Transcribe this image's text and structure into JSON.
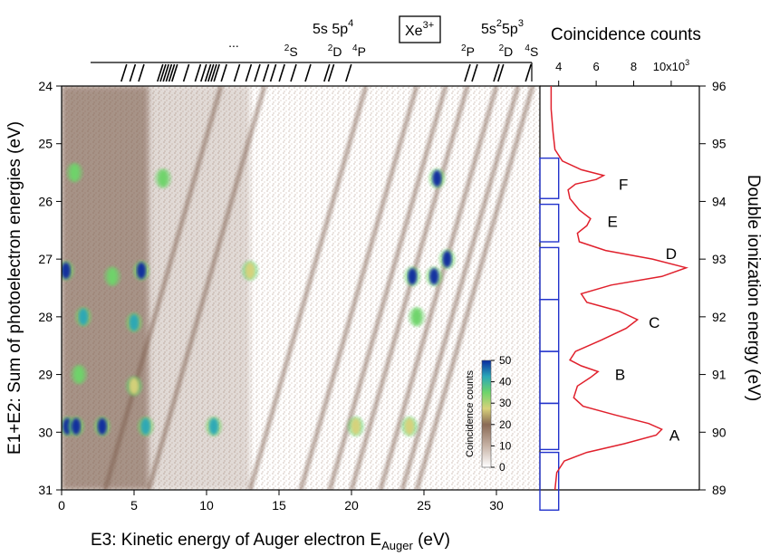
{
  "chart_data": [
    {
      "type": "heatmap",
      "xlabel_main": "E3: Kinetic energy of Auger electron E",
      "xlabel_sub": "Auger",
      "xlabel_unit": " (eV)",
      "ylabel": "E1+E2: Sum of photoelectron energies (eV)",
      "xlim": [
        0,
        33
      ],
      "ylim": [
        24,
        31
      ],
      "xticks": [
        0,
        5,
        10,
        15,
        20,
        25,
        30
      ],
      "yticks": [
        24,
        25,
        26,
        27,
        28,
        29,
        30,
        31
      ],
      "y_reversed": true,
      "colorbar": {
        "label": "Coincidence counts",
        "range": [
          0,
          50
        ],
        "ticks": [
          0,
          10,
          20,
          30,
          40,
          50
        ]
      },
      "hotspots": [
        {
          "x": 0.4,
          "y": 29.9,
          "level": 50
        },
        {
          "x": 1.0,
          "y": 29.9,
          "level": 48
        },
        {
          "x": 2.8,
          "y": 29.9,
          "level": 46
        },
        {
          "x": 5.8,
          "y": 29.9,
          "level": 44
        },
        {
          "x": 10.5,
          "y": 29.9,
          "level": 38
        },
        {
          "x": 0.3,
          "y": 27.2,
          "level": 45
        },
        {
          "x": 5.5,
          "y": 27.2,
          "level": 48
        },
        {
          "x": 3.5,
          "y": 27.3,
          "level": 30
        },
        {
          "x": 13.0,
          "y": 27.2,
          "level": 25
        },
        {
          "x": 24.2,
          "y": 27.3,
          "level": 50
        },
        {
          "x": 25.7,
          "y": 27.3,
          "level": 48
        },
        {
          "x": 26.6,
          "y": 27.0,
          "level": 45
        },
        {
          "x": 1.5,
          "y": 28.0,
          "level": 40
        },
        {
          "x": 5.0,
          "y": 28.1,
          "level": 42
        },
        {
          "x": 24.5,
          "y": 28.0,
          "level": 30
        },
        {
          "x": 25.9,
          "y": 25.6,
          "level": 45
        },
        {
          "x": 7.0,
          "y": 25.6,
          "level": 32
        },
        {
          "x": 0.9,
          "y": 25.5,
          "level": 30
        },
        {
          "x": 1.2,
          "y": 29.0,
          "level": 30
        },
        {
          "x": 5.0,
          "y": 29.2,
          "level": 25
        },
        {
          "x": 20.3,
          "y": 29.9,
          "level": 22
        },
        {
          "x": 24.0,
          "y": 29.9,
          "level": 28
        }
      ],
      "diagonals": [
        {
          "x_at_24": 21.0,
          "x_at_31": 13.0
        },
        {
          "x_at_24": 24.5,
          "x_at_31": 16.5
        },
        {
          "x_at_24": 26.5,
          "x_at_31": 18.5
        },
        {
          "x_at_24": 28.0,
          "x_at_31": 20.0
        },
        {
          "x_at_24": 30.0,
          "x_at_31": 22.0
        },
        {
          "x_at_24": 31.5,
          "x_at_31": 23.5
        },
        {
          "x_at_24": 32.5,
          "x_at_31": 24.5
        },
        {
          "x_at_24": 14.0,
          "x_at_31": 6.0
        },
        {
          "x_at_24": 11.0,
          "x_at_31": 3.0
        }
      ]
    },
    {
      "type": "line",
      "title": "Coincidence counts",
      "xlim": [
        3,
        11.5
      ],
      "xticks": [
        4,
        6,
        8
      ],
      "xtick_last": "10x10",
      "xtick_last_exp": "3",
      "ylabel": "Double ionization energy (eV)",
      "ylim": [
        96,
        89
      ],
      "yticks": [
        96,
        95,
        94,
        93,
        92,
        91,
        90,
        89
      ],
      "y_on_left_scale": "E1+E2",
      "curve": [
        [
          24.0,
          3.6
        ],
        [
          24.4,
          3.6
        ],
        [
          24.8,
          3.7
        ],
        [
          25.1,
          3.8
        ],
        [
          25.3,
          4.2
        ],
        [
          25.45,
          5.2
        ],
        [
          25.55,
          6.4
        ],
        [
          25.62,
          6.0
        ],
        [
          25.7,
          4.9
        ],
        [
          25.8,
          4.5
        ],
        [
          25.95,
          4.6
        ],
        [
          26.15,
          5.1
        ],
        [
          26.3,
          5.7
        ],
        [
          26.42,
          5.5
        ],
        [
          26.55,
          5.0
        ],
        [
          26.7,
          5.1
        ],
        [
          26.85,
          6.5
        ],
        [
          27.0,
          9.0
        ],
        [
          27.15,
          10.8
        ],
        [
          27.3,
          9.5
        ],
        [
          27.45,
          6.8
        ],
        [
          27.6,
          5.2
        ],
        [
          27.75,
          5.5
        ],
        [
          27.9,
          7.2
        ],
        [
          28.05,
          8.2
        ],
        [
          28.2,
          7.6
        ],
        [
          28.4,
          6.3
        ],
        [
          28.6,
          4.9
        ],
        [
          28.75,
          4.6
        ],
        [
          28.85,
          5.2
        ],
        [
          28.95,
          6.1
        ],
        [
          29.05,
          5.7
        ],
        [
          29.2,
          5.0
        ],
        [
          29.4,
          4.8
        ],
        [
          29.55,
          5.3
        ],
        [
          29.7,
          7.0
        ],
        [
          29.85,
          8.8
        ],
        [
          29.95,
          9.5
        ],
        [
          30.05,
          9.2
        ],
        [
          30.2,
          7.5
        ],
        [
          30.35,
          5.5
        ],
        [
          30.5,
          4.3
        ],
        [
          30.7,
          3.9
        ],
        [
          31.0,
          3.8
        ]
      ],
      "peak_labels": [
        {
          "text": "F",
          "x": 7.2,
          "y": 25.7
        },
        {
          "text": "E",
          "x": 6.6,
          "y": 26.35
        },
        {
          "text": "D",
          "x": 9.7,
          "y": 26.9
        },
        {
          "text": "C",
          "x": 8.8,
          "y": 28.1
        },
        {
          "text": "B",
          "x": 7.0,
          "y": 29.0
        },
        {
          "text": "A",
          "x": 9.9,
          "y": 30.05
        }
      ],
      "windows": [
        [
          25.25,
          25.95
        ],
        [
          26.05,
          26.7
        ],
        [
          26.8,
          27.7
        ],
        [
          27.7,
          28.6
        ],
        [
          28.6,
          29.5
        ],
        [
          29.5,
          30.3
        ],
        [
          30.35,
          31.35
        ]
      ]
    }
  ],
  "annotations": {
    "state_label_5s5p4": "5s 5p",
    "state_label_5s5p4_exp": "4",
    "state_label_5s2_a": "5s",
    "state_label_5s2_exp1": "2",
    "state_label_5s2_b": "5p",
    "state_label_5s2_exp2": "3",
    "ion_box": "Xe",
    "ion_box_exp": "3+",
    "ellipsis": "...",
    "terms": [
      {
        "sup": "2",
        "text": "S",
        "x": 15.8
      },
      {
        "sup": "2",
        "text": "D",
        "x": 18.8
      },
      {
        "sup": "4",
        "text": "P",
        "x": 20.5
      },
      {
        "sup": "2",
        "text": "P",
        "x": 28.0
      },
      {
        "sup": "2",
        "text": "D",
        "x": 30.6
      },
      {
        "sup": "4",
        "text": "S",
        "x": 32.4
      }
    ],
    "tick_marks": [
      4.3,
      4.9,
      5.5,
      6.8,
      7.0,
      7.2,
      7.4,
      7.6,
      7.8,
      8.6,
      9.4,
      9.8,
      10.1,
      10.3,
      10.5,
      10.7,
      11.2,
      12.1,
      12.9,
      13.5,
      14.1,
      14.6,
      15.2,
      16.0,
      17.0,
      18.3,
      18.6,
      19.8,
      28.0,
      28.5,
      30.0,
      30.3,
      32.2
    ]
  },
  "colors": {
    "curve": "#e0202c",
    "windows": "#2233cc",
    "density": "#7a5a48"
  }
}
